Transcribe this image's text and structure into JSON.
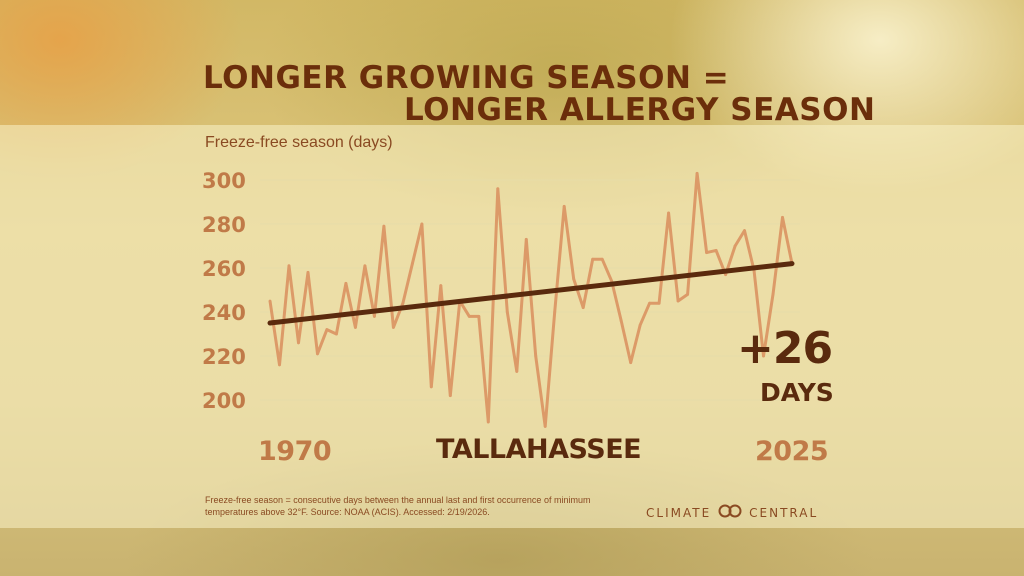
{
  "title_line1": "LONGER GROWING SEASON =",
  "title_line2": "LONGER ALLERGY SEASON",
  "location": "TALLAHASSEE",
  "footnote": "Freeze-free season = consecutive days between the annual last and first occurrence of minimum temperatures above 32°F. Source: NOAA (ACIS). Accessed: 2/19/2026.",
  "logo": {
    "left": "CLIMATE",
    "right": "CENTRAL"
  },
  "colors": {
    "line": "#dc9a68",
    "trend": "#5a2a0e",
    "title": "#6b2e0b",
    "tick": "#c07a48",
    "grid": "#e6dca8"
  },
  "chart_data": {
    "type": "line",
    "ylabel": "Freeze-free season (days)",
    "ylim": [
      190,
      305
    ],
    "yticks": [
      200,
      220,
      240,
      260,
      280,
      300
    ],
    "xlim": [
      1970,
      2025
    ],
    "xtick_labels": [
      "1970",
      "2025"
    ],
    "grid": true,
    "series": [
      {
        "x": [
          1970,
          1971,
          1972,
          1973,
          1974,
          1975,
          1976,
          1977,
          1978,
          1979,
          1980,
          1981,
          1982,
          1983,
          1984,
          1985,
          1986,
          1987,
          1988,
          1989,
          1990,
          1991,
          1992,
          1993,
          1994,
          1995,
          1996,
          1997,
          1998,
          1999,
          2000,
          2001,
          2002,
          2003,
          2004,
          2005,
          2006,
          2007,
          2008,
          2009,
          2010,
          2011,
          2012,
          2013,
          2014,
          2015,
          2016,
          2017,
          2018,
          2019,
          2020,
          2021,
          2022,
          2023,
          2024,
          2025
        ],
        "values": [
          245,
          216,
          261,
          226,
          258,
          221,
          232,
          230,
          253,
          233,
          261,
          238,
          279,
          233,
          244,
          262,
          280,
          206,
          252,
          202,
          245,
          238,
          238,
          190,
          296,
          240,
          213,
          273,
          220,
          188,
          240,
          288,
          255,
          242,
          264,
          264,
          254,
          236,
          217,
          234,
          244,
          244,
          285,
          245,
          248,
          303,
          267,
          268,
          257,
          270,
          277,
          259,
          220,
          248,
          283,
          262
        ]
      }
    ],
    "trend": {
      "start": 235,
      "end": 262
    },
    "annotation": {
      "value": "+26",
      "unit": "DAYS"
    }
  }
}
